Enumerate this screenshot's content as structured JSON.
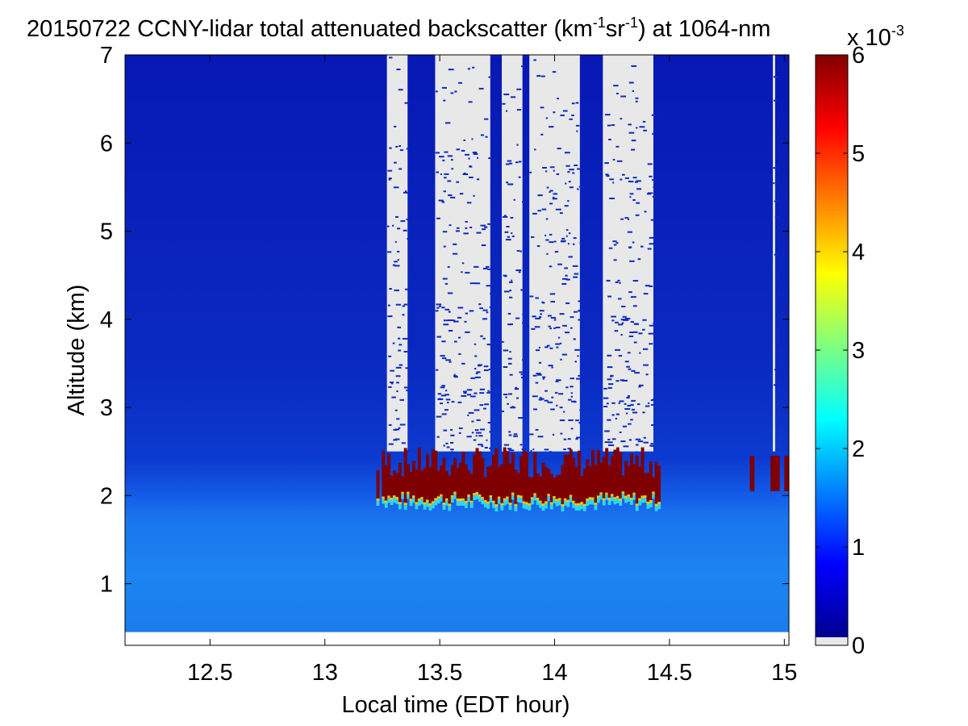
{
  "chart_data": {
    "type": "heatmap",
    "title": {
      "main": "20150722 CCNY-lidar total attenuated backscatter (km",
      "sup1": "-1",
      "mid": "sr",
      "sup2": "-1",
      "end": ") at 1064-nm"
    },
    "xlabel": "Local time (EDT hour)",
    "ylabel": "Altitude (km)",
    "xlim": [
      12.13,
      15.02
    ],
    "ylim": [
      0.3,
      7
    ],
    "xticks": [
      12.5,
      13,
      13.5,
      14,
      14.5,
      15
    ],
    "xtick_labels": [
      "12.5",
      "13",
      "13.5",
      "14",
      "14.5",
      "15"
    ],
    "yticks": [
      1,
      2,
      3,
      4,
      5,
      6,
      7
    ],
    "ytick_labels": [
      "1",
      "2",
      "3",
      "4",
      "5",
      "6",
      "7"
    ],
    "colorbar": {
      "colormap": "jet",
      "range": [
        0,
        6
      ],
      "ticks": [
        0,
        1,
        2,
        3,
        4,
        5,
        6
      ],
      "tick_labels": [
        "0",
        "1",
        "2",
        "3",
        "4",
        "5",
        "6"
      ],
      "multiplier": {
        "base": "x 10",
        "exponent": "-3"
      },
      "no_data_color": "#e8e8e8"
    },
    "data_floor_altitude_km": 0.45,
    "cloud_base_altitude_km": [
      2.0,
      2.2
    ],
    "missing_data_intervals": [
      {
        "start": 13.27,
        "end": 13.36
      },
      {
        "start": 13.48,
        "end": 13.72
      },
      {
        "start": 13.77,
        "end": 13.86
      },
      {
        "start": 13.89,
        "end": 14.11
      },
      {
        "start": 14.21,
        "end": 14.43
      },
      {
        "start": 14.95,
        "end": 14.96
      }
    ],
    "colors": {
      "background_low": "#0a2fc4",
      "boundary_layer": "#1c7af0",
      "cloud": "#7f0000",
      "no_data": "#e8e8e8"
    }
  }
}
